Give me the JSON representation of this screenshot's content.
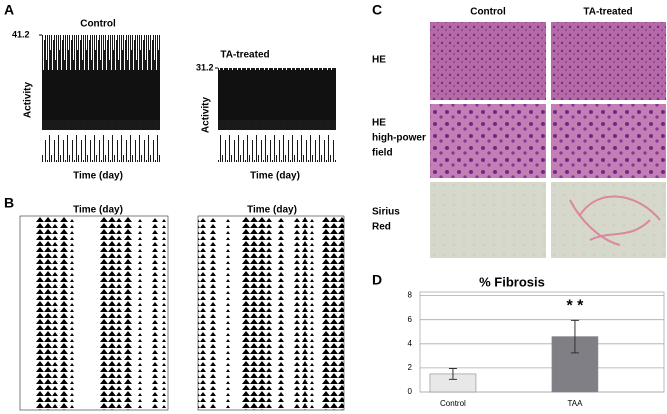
{
  "chart_data": {
    "type": "bar",
    "title": "% Fibrosis",
    "categories": [
      "Control",
      "TAA"
    ],
    "values": [
      1.5,
      4.6
    ],
    "errors": [
      0.45,
      1.35
    ],
    "colors": [
      "#e8e8e8",
      "#7f7f85"
    ],
    "ylim": [
      0,
      8.3
    ],
    "yticks": [
      0,
      2,
      4,
      6,
      8
    ],
    "grid": true,
    "annotation": "* *"
  },
  "panel_labels": [
    "A",
    "B",
    "C",
    "D"
  ],
  "panel_a": [
    {
      "title": "Control",
      "ylabel": "Activity",
      "xlabel": "Time (day)",
      "ylim": [
        0,
        41.2
      ],
      "yticks": [
        41.2
      ]
    },
    {
      "title": "TA-treated",
      "ylabel": "Activity",
      "xlabel": "Time (day)",
      "ylim": [
        0,
        31.2
      ],
      "yticks": [
        31.2
      ]
    }
  ],
  "panel_b": {
    "xlabels": [
      "Time (day)",
      "Time (day)"
    ]
  },
  "panel_c": {
    "columns": [
      "Control",
      "TA-treated"
    ],
    "rows": [
      [
        "HE"
      ],
      [
        "HE",
        "high-power",
        "field"
      ],
      [
        "Sirius",
        "Red"
      ]
    ]
  }
}
